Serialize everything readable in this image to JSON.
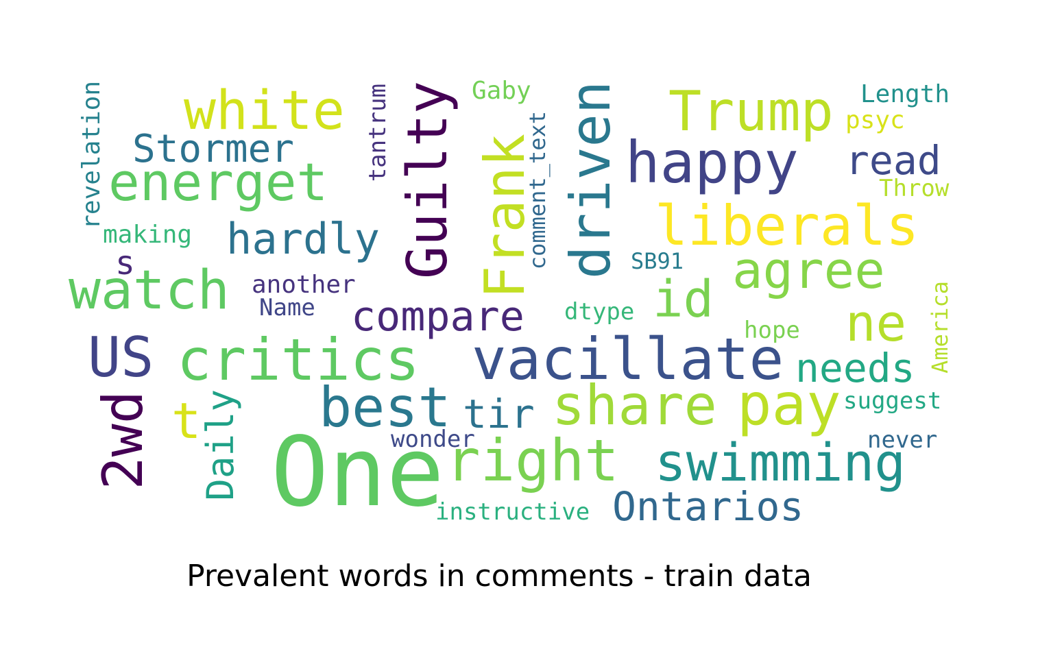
{
  "caption": "Prevalent words in comments - train data",
  "words": [
    {
      "text": "One",
      "color": "#5ec962",
      "vertical": false
    },
    {
      "text": "vacillate",
      "color": "#3b528b",
      "vertical": false
    },
    {
      "text": "critics",
      "color": "#5ec962",
      "vertical": false
    },
    {
      "text": "swimming",
      "color": "#21918c",
      "vertical": false
    },
    {
      "text": "right",
      "color": "#7ad151",
      "vertical": false
    },
    {
      "text": "share",
      "color": "#a0da39",
      "vertical": false
    },
    {
      "text": "pay",
      "color": "#bddf26",
      "vertical": false
    },
    {
      "text": "best",
      "color": "#2a788e",
      "vertical": false
    },
    {
      "text": "happy",
      "color": "#414487",
      "vertical": false
    },
    {
      "text": "energet",
      "color": "#5ec962",
      "vertical": false
    },
    {
      "text": "watch",
      "color": "#5ec962",
      "vertical": false
    },
    {
      "text": "white",
      "color": "#d2e21b",
      "vertical": false
    },
    {
      "text": "Trump",
      "color": "#bddf26",
      "vertical": false
    },
    {
      "text": "liberals",
      "color": "#fde725",
      "vertical": false
    },
    {
      "text": "agree",
      "color": "#86d549",
      "vertical": false
    },
    {
      "text": "Guilty",
      "color": "#440154",
      "vertical": true
    },
    {
      "text": "driven",
      "color": "#2a788e",
      "vertical": true
    },
    {
      "text": "Frank",
      "color": "#c2df23",
      "vertical": true
    },
    {
      "text": "2wd",
      "color": "#440154",
      "vertical": true
    },
    {
      "text": "US",
      "color": "#414487",
      "vertical": false
    },
    {
      "text": "compare",
      "color": "#482878",
      "vertical": false
    },
    {
      "text": "hardly",
      "color": "#2c728e",
      "vertical": false
    },
    {
      "text": "Stormer",
      "color": "#2c728e",
      "vertical": false
    },
    {
      "text": "Ontarios",
      "color": "#31688e",
      "vertical": false
    },
    {
      "text": "needs",
      "color": "#22a884",
      "vertical": false
    },
    {
      "text": "id",
      "color": "#7ad151",
      "vertical": false
    },
    {
      "text": "ne",
      "color": "#b5de2b",
      "vertical": false
    },
    {
      "text": "read",
      "color": "#3e4a89",
      "vertical": false
    },
    {
      "text": "tir",
      "color": "#2c728e",
      "vertical": false
    },
    {
      "text": "t",
      "color": "#d8e219",
      "vertical": false
    },
    {
      "text": "Daily",
      "color": "#1fa187",
      "vertical": true
    },
    {
      "text": "s",
      "color": "#482878",
      "vertical": false
    },
    {
      "text": "revelation",
      "color": "#26828e",
      "vertical": true
    },
    {
      "text": "tantrum",
      "color": "#46337e",
      "vertical": true
    },
    {
      "text": "comment_text",
      "color": "#31688e",
      "vertical": true
    },
    {
      "text": "America",
      "color": "#b5de2b",
      "vertical": true
    },
    {
      "text": "another",
      "color": "#46337e",
      "vertical": false
    },
    {
      "text": "Name",
      "color": "#404688",
      "vertical": false
    },
    {
      "text": "making",
      "color": "#35b779",
      "vertical": false
    },
    {
      "text": "Gaby",
      "color": "#73d056",
      "vertical": false
    },
    {
      "text": "Length",
      "color": "#21918c",
      "vertical": false
    },
    {
      "text": "psyc",
      "color": "#d8e219",
      "vertical": false
    },
    {
      "text": "Throw",
      "color": "#b5de2b",
      "vertical": false
    },
    {
      "text": "SB91",
      "color": "#287c8e",
      "vertical": false
    },
    {
      "text": "dtype",
      "color": "#35b779",
      "vertical": false
    },
    {
      "text": "hope",
      "color": "#7ad151",
      "vertical": false
    },
    {
      "text": "suggest",
      "color": "#22a884",
      "vertical": false
    },
    {
      "text": "never",
      "color": "#31688e",
      "vertical": false
    },
    {
      "text": "wonder",
      "color": "#3e4a89",
      "vertical": false
    },
    {
      "text": "instructive",
      "color": "#2ab07f",
      "vertical": false
    }
  ]
}
